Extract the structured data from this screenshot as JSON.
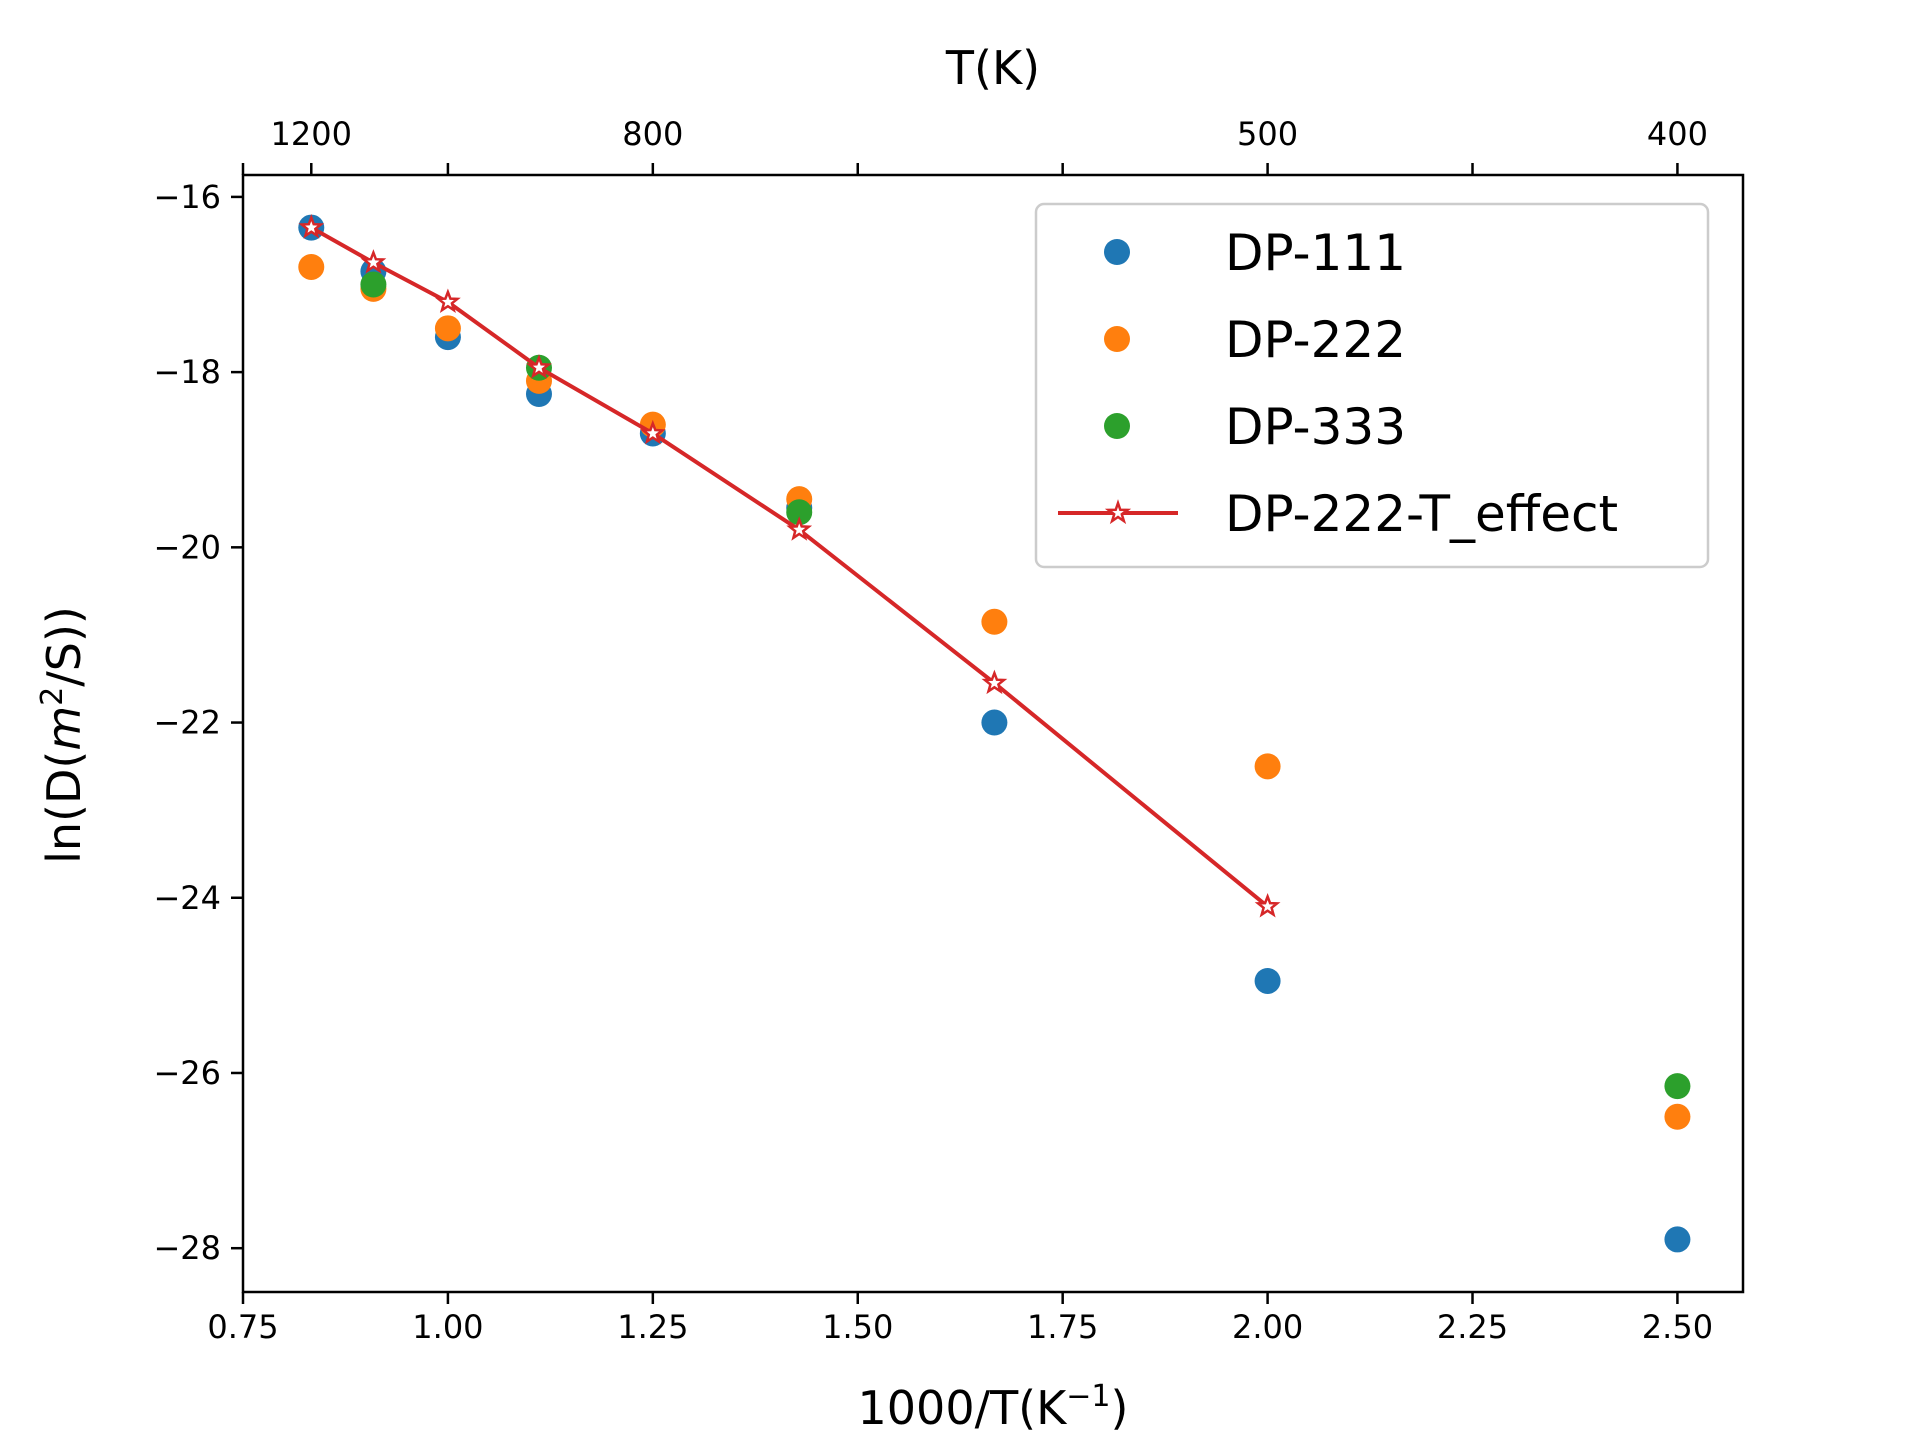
{
  "chart_data": {
    "type": "scatter",
    "xlabel": "1000/T(K",
    "xlabel_sup": "−1",
    "xlabel_suffix": ")",
    "ylabel": "ln(D(",
    "ylabel_var": "m",
    "ylabel_sup": "2",
    "ylabel_suffix": "/S))",
    "top_axis_label": "T(K)",
    "xlim": [
      0.75,
      2.58
    ],
    "ylim": [
      -28.5,
      -15.75
    ],
    "x_ticks": [
      0.75,
      1.0,
      1.25,
      1.5,
      1.75,
      2.0,
      2.25,
      2.5
    ],
    "x_tick_labels": [
      "0.75",
      "1.00",
      "1.25",
      "1.50",
      "1.75",
      "2.00",
      "2.25",
      "2.50"
    ],
    "y_ticks": [
      -16,
      -18,
      -20,
      -22,
      -24,
      -26,
      -28
    ],
    "y_tick_labels": [
      "−16",
      "−18",
      "−20",
      "−22",
      "−24",
      "−26",
      "−28"
    ],
    "top_ticks": [
      0.8333,
      1.25,
      2.0,
      2.5
    ],
    "top_tick_labels": [
      "1200",
      "800",
      "500",
      "400"
    ],
    "top_minor_ticks": [
      0.75,
      1.0,
      1.5,
      1.75,
      2.25
    ],
    "legend_position": "upper-right",
    "series": [
      {
        "name": "DP-111",
        "kind": "scatter",
        "color": "#1f77b4",
        "x": [
          0.8333,
          0.9091,
          1.0,
          1.1111,
          1.25,
          1.4286,
          1.6667,
          2.0,
          2.5
        ],
        "y": [
          -16.35,
          -16.85,
          -17.6,
          -18.25,
          -18.7,
          -19.55,
          -22.0,
          -24.95,
          -27.9
        ]
      },
      {
        "name": "DP-222",
        "kind": "scatter",
        "color": "#ff7f0e",
        "x": [
          0.8333,
          0.9091,
          1.0,
          1.1111,
          1.25,
          1.4286,
          1.6667,
          2.0,
          2.5
        ],
        "y": [
          -16.8,
          -17.05,
          -17.5,
          -18.1,
          -18.6,
          -19.45,
          -20.85,
          -22.5,
          -26.5
        ]
      },
      {
        "name": "DP-333",
        "kind": "scatter",
        "color": "#2ca02c",
        "x": [
          0.9091,
          1.1111,
          1.4286,
          2.5
        ],
        "y": [
          -17.0,
          -17.95,
          -19.6,
          -26.15
        ]
      },
      {
        "name": "DP-222-T_effect",
        "kind": "line",
        "color": "#d62728",
        "x": [
          0.8333,
          0.9091,
          1.0,
          1.1111,
          1.25,
          1.4286,
          1.6667,
          2.0
        ],
        "y": [
          -16.35,
          -16.75,
          -17.2,
          -17.95,
          -18.7,
          -19.8,
          -21.55,
          -24.1
        ]
      }
    ]
  }
}
